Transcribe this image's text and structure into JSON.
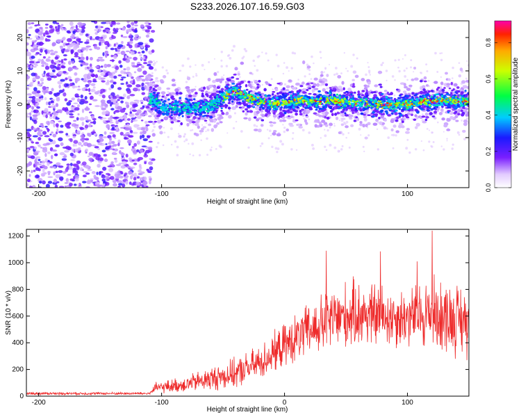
{
  "title": "S233.2026.107.16.59.G03",
  "chart_data": [
    {
      "type": "heatmap",
      "name": "spectrogram",
      "xlabel": "Height of straight line (km)",
      "ylabel": "Frequency (Hz)",
      "xlim": [
        -210,
        150
      ],
      "ylim": [
        -25,
        25
      ],
      "xticks": [
        -200,
        -100,
        0,
        100
      ],
      "yticks": [
        -20,
        -10,
        0,
        10,
        20
      ],
      "noise_region_km": [
        -210,
        -110
      ],
      "signal_band": [
        {
          "x": -110,
          "y": 2
        },
        {
          "x": -100,
          "y": -1
        },
        {
          "x": -80,
          "y": -1
        },
        {
          "x": -60,
          "y": -1
        },
        {
          "x": -50,
          "y": 2
        },
        {
          "x": -40,
          "y": 4
        },
        {
          "x": -30,
          "y": 2
        },
        {
          "x": -10,
          "y": 0
        },
        {
          "x": 10,
          "y": 1
        },
        {
          "x": 40,
          "y": 1
        },
        {
          "x": 70,
          "y": 0
        },
        {
          "x": 100,
          "y": 0
        },
        {
          "x": 120,
          "y": 1
        },
        {
          "x": 150,
          "y": 1
        }
      ],
      "colorbar": {
        "label": "Normalized spectral amplitude",
        "range": [
          0,
          0.92
        ],
        "ticks": [
          "0.0",
          "0.2",
          "0.4",
          "0.6",
          "0.8"
        ]
      }
    },
    {
      "type": "line",
      "name": "snr",
      "xlabel": "Height of straight line (km)",
      "ylabel": "SNR (10 * v/v)",
      "xlim": [
        -210,
        150
      ],
      "ylim": [
        0,
        1250
      ],
      "xticks": [
        -200,
        -100,
        0,
        100
      ],
      "yticks": [
        0,
        200,
        400,
        600,
        800,
        1000,
        1200
      ],
      "color": "#ee2a2a",
      "envelope": [
        {
          "x": -210,
          "mean": 20,
          "spread": 10
        },
        {
          "x": -110,
          "mean": 20,
          "spread": 10
        },
        {
          "x": -105,
          "mean": 60,
          "spread": 40
        },
        {
          "x": -80,
          "mean": 90,
          "spread": 60
        },
        {
          "x": -60,
          "mean": 130,
          "spread": 90
        },
        {
          "x": -40,
          "mean": 170,
          "spread": 110
        },
        {
          "x": -20,
          "mean": 250,
          "spread": 130
        },
        {
          "x": 0,
          "mean": 380,
          "spread": 160
        },
        {
          "x": 20,
          "mean": 490,
          "spread": 200
        },
        {
          "x": 40,
          "mean": 580,
          "spread": 250
        },
        {
          "x": 60,
          "mean": 620,
          "spread": 250
        },
        {
          "x": 80,
          "mean": 600,
          "spread": 240
        },
        {
          "x": 100,
          "mean": 590,
          "spread": 220
        },
        {
          "x": 120,
          "mean": 620,
          "spread": 280
        },
        {
          "x": 150,
          "mean": 560,
          "spread": 260
        }
      ],
      "peaks": [
        {
          "x": 120,
          "y": 1240
        },
        {
          "x": 34,
          "y": 1090
        },
        {
          "x": 78,
          "y": 1085
        },
        {
          "x": 108,
          "y": 1010
        }
      ]
    }
  ]
}
